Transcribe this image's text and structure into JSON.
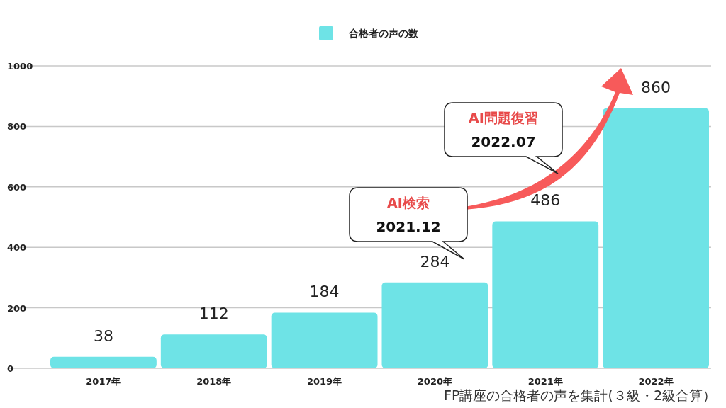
{
  "chart_data": {
    "type": "bar",
    "categories": [
      "2017年",
      "2018年",
      "2019年",
      "2020年",
      "2021年",
      "2022年"
    ],
    "series": [
      {
        "name": "合格者の声の数",
        "color": "#6ee3e6",
        "values": [
          38,
          112,
          184,
          284,
          486,
          860
        ]
      }
    ],
    "ylim": [
      0,
      1000
    ],
    "yticks": [
      0,
      200,
      400,
      600,
      800,
      1000
    ],
    "grid": "y",
    "legend": "top",
    "data_labels": true,
    "annotations": [
      "AI検索\n2021.12",
      "AI問題復習\n2022.07",
      "FP講座の合格者の声を集計(３級・2級合算）"
    ]
  }
}
